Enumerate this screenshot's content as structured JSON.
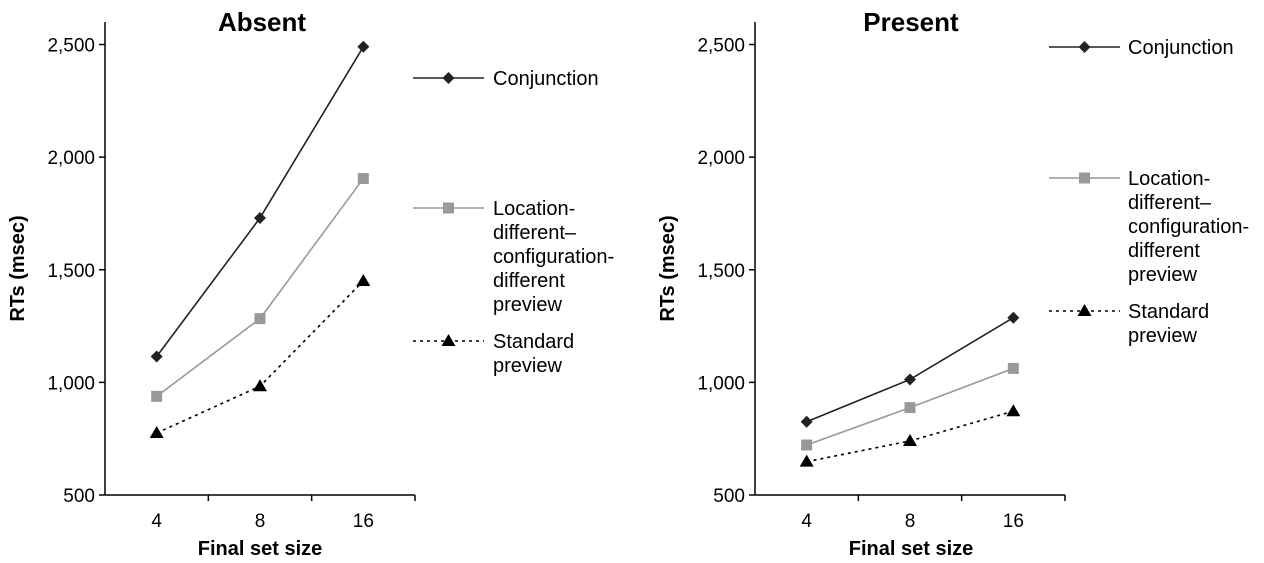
{
  "chart_data": [
    {
      "type": "line",
      "title": "Absent",
      "xlabel": "Final set size",
      "ylabel": "RTs (msec)",
      "categories": [
        "4",
        "8",
        "16"
      ],
      "yticks": [
        "500",
        "1,000",
        "1,500",
        "2,000",
        "2,500"
      ],
      "ylim": [
        500,
        2600
      ],
      "series": [
        {
          "name": "Conjunction",
          "values": [
            1115,
            1730,
            2490
          ],
          "color": "#222222",
          "marker": "diamond",
          "dash": "solid",
          "legend_lines": [
            "Conjunction"
          ]
        },
        {
          "name": "Location-different–configuration-different preview",
          "values": [
            938,
            1283,
            1905
          ],
          "color": "#999999",
          "marker": "square",
          "dash": "solid",
          "legend_lines": [
            "Location-",
            "different–",
            "configuration-",
            "different",
            "preview"
          ]
        },
        {
          "name": "Standard preview",
          "values": [
            775,
            983,
            1450
          ],
          "color": "#000000",
          "marker": "triangle",
          "dash": "dotted",
          "legend_lines": [
            "Standard",
            "preview"
          ]
        }
      ]
    },
    {
      "type": "line",
      "title": "Present",
      "xlabel": "Final set size",
      "ylabel": "RTs (msec)",
      "categories": [
        "4",
        "8",
        "16"
      ],
      "yticks": [
        "500",
        "1,000",
        "1,500",
        "2,000",
        "2,500"
      ],
      "ylim": [
        500,
        2600
      ],
      "series": [
        {
          "name": "Conjunction",
          "values": [
            825,
            1013,
            1287
          ],
          "color": "#222222",
          "marker": "diamond",
          "dash": "solid",
          "legend_lines": [
            "Conjunction"
          ]
        },
        {
          "name": "Location-different–configuration-different preview",
          "values": [
            722,
            888,
            1062
          ],
          "color": "#999999",
          "marker": "square",
          "dash": "solid",
          "legend_lines": [
            "Location-",
            "different–",
            "configuration-",
            "different",
            "preview"
          ]
        },
        {
          "name": "Standard preview",
          "values": [
            648,
            740,
            872
          ],
          "color": "#000000",
          "marker": "triangle",
          "dash": "dotted",
          "legend_lines": [
            "Standard",
            "preview"
          ]
        }
      ]
    }
  ]
}
